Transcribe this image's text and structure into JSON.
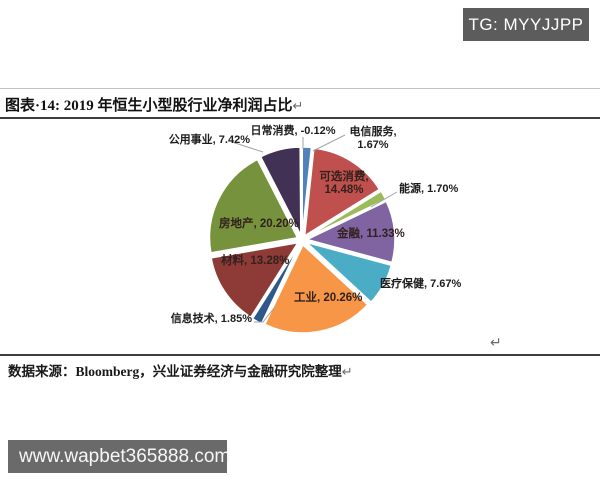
{
  "overlays": {
    "tg_badge": "TG: MYYJJPP",
    "watermark_url": "www.wapbet365888.com"
  },
  "figure": {
    "title": "图表·14: 2019 年恒生小型股行业净利润占比",
    "source": "数据来源：Bloomberg，兴业证券经济与金融研究院整理",
    "return_mark": "↵"
  },
  "chart_data": {
    "type": "pie",
    "title": "2019 年恒生小型股行业净利润占比",
    "unit": "%",
    "direction": "clockwise",
    "start_angle_deg": 0,
    "legend": "none",
    "label_format": "category, percent",
    "slices": [
      {
        "id": "telecom",
        "name": "电信服务",
        "value": 1.67,
        "label": "电信服务, 1.67%",
        "color": "#4F81BD"
      },
      {
        "id": "discretionary",
        "name": "可选消费",
        "value": 14.48,
        "label": "可选消费, 14.48%",
        "color": "#C0504D"
      },
      {
        "id": "energy",
        "name": "能源",
        "value": 1.7,
        "label": "能源, 1.70%",
        "color": "#9BBB59"
      },
      {
        "id": "financials",
        "name": "金融",
        "value": 11.33,
        "label": "金融, 11.33%",
        "color": "#8064A2"
      },
      {
        "id": "healthcare",
        "name": "医疗保健",
        "value": 7.67,
        "label": "医疗保健, 7.67%",
        "color": "#4BACC6"
      },
      {
        "id": "industrials",
        "name": "工业",
        "value": 20.26,
        "label": "工业, 20.26%",
        "color": "#F79646"
      },
      {
        "id": "it",
        "name": "信息技术",
        "value": 1.85,
        "label": "信息技术, 1.85%",
        "color": "#2E578C"
      },
      {
        "id": "materials",
        "name": "材料",
        "value": 13.28,
        "label": "材料, 13.28%",
        "color": "#8E3A37"
      },
      {
        "id": "realestate",
        "name": "房地产",
        "value": 20.2,
        "label": "房地产, 20.20%",
        "color": "#76923C"
      },
      {
        "id": "utilities",
        "name": "公用事业",
        "value": 7.42,
        "label": "公用事业, 7.42%",
        "color": "#413154"
      },
      {
        "id": "staples",
        "name": "日常消费",
        "value": -0.12,
        "label": "日常消费, -0.12%",
        "color": "#4F81BD"
      }
    ]
  }
}
